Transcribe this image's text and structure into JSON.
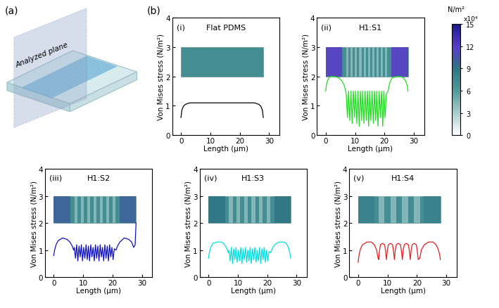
{
  "figure": {
    "panel_a": {
      "label": "(a)",
      "text": "Analyzed plane"
    },
    "panel_b_label": "(b)",
    "colorbar": {
      "range": [
        0,
        15
      ],
      "ticks": [
        0,
        3,
        6,
        9,
        12,
        15
      ],
      "unit": "N/m²",
      "multiplier": "x10⁴"
    }
  },
  "chart_data": [
    {
      "type": "line",
      "panel": "(i)",
      "title": "Flat PDMS",
      "x_label": "Length (μm)",
      "y_label": "Von Mises stress (N/m²)",
      "color": "#000000",
      "xlim": [
        -3,
        33.5
      ],
      "xticks": [
        0,
        10,
        20,
        30
      ],
      "ylim": [
        0,
        4
      ],
      "yticks": [
        0,
        1,
        2,
        3,
        4
      ],
      "inset": {
        "base": 7
      },
      "x": [
        0,
        0.3,
        0.8,
        1.5,
        3,
        6,
        10,
        14,
        18,
        22,
        25,
        26.5,
        27.2,
        27.7,
        28
      ],
      "values": [
        0.6,
        0.85,
        0.98,
        1.05,
        1.1,
        1.1,
        1.1,
        1.1,
        1.1,
        1.1,
        1.1,
        1.05,
        0.98,
        0.85,
        0.6
      ]
    },
    {
      "type": "line",
      "panel": "(ii)",
      "title": "H1:S1",
      "x_label": "Length (μm)",
      "y_label": "Von Mises stress (N/m²)",
      "color": "#22dd22",
      "xlim": [
        -3,
        33.5
      ],
      "xticks": [
        0,
        10,
        20,
        30
      ],
      "ylim": [
        0,
        4
      ],
      "yticks": [
        0,
        1,
        2,
        3,
        4
      ],
      "inset": {
        "base": 7,
        "ends": 12,
        "stripe": 4,
        "stripes": 10
      },
      "x": [
        0,
        0.3,
        0.8,
        1.5,
        3,
        4.5,
        5.5,
        6.3,
        6.8,
        7.0,
        7.4,
        7.8,
        8.2,
        8.6,
        9.0,
        9.4,
        9.8,
        10.2,
        10.6,
        11.0,
        11.4,
        11.8,
        12.2,
        12.6,
        13.0,
        13.4,
        13.8,
        14.2,
        14.6,
        15.0,
        15.4,
        15.8,
        16.2,
        16.6,
        17.0,
        17.4,
        17.8,
        18.2,
        18.6,
        19.0,
        19.4,
        19.8,
        20.2,
        20.6,
        21.2,
        21.7,
        22.5,
        24,
        25.5,
        26.5,
        27.2,
        27.7,
        28
      ],
      "values": [
        1.5,
        1.75,
        1.9,
        2.0,
        2.0,
        1.95,
        1.85,
        1.7,
        1.5,
        1.4,
        0.6,
        1.5,
        0.5,
        1.5,
        0.4,
        1.5,
        0.6,
        1.5,
        0.4,
        1.5,
        0.3,
        1.5,
        0.5,
        1.5,
        0.4,
        1.5,
        0.5,
        1.5,
        0.3,
        1.5,
        0.5,
        1.5,
        0.4,
        1.5,
        0.5,
        1.5,
        0.3,
        1.5,
        0.6,
        1.5,
        0.3,
        1.5,
        0.6,
        1.4,
        1.5,
        1.75,
        1.95,
        2.0,
        2.0,
        1.95,
        1.85,
        1.7,
        1.5
      ]
    },
    {
      "type": "line",
      "panel": "(iii)",
      "title": "H1:S2",
      "x_label": "Length (μm)",
      "y_label": "Von Mises stress (N/m²)",
      "color": "#1010c0",
      "xlim": [
        -3,
        33.5
      ],
      "xticks": [
        0,
        10,
        20,
        30
      ],
      "ylim": [
        0,
        4
      ],
      "yticks": [
        0,
        1,
        2,
        3,
        4
      ],
      "inset": {
        "base": 7,
        "ends": 10,
        "stripe": 4,
        "stripes": 7
      },
      "x": [
        0,
        0.3,
        0.8,
        1.5,
        3,
        4.5,
        5.5,
        6.3,
        6.8,
        7.0,
        7.4,
        7.8,
        8.2,
        8.6,
        9.0,
        9.4,
        9.8,
        10.2,
        10.6,
        11.0,
        11.4,
        11.8,
        12.2,
        12.6,
        13.0,
        13.4,
        13.8,
        14.2,
        14.6,
        15.0,
        15.4,
        15.8,
        16.2,
        16.6,
        17.0,
        17.4,
        17.8,
        18.2,
        18.6,
        19.0,
        19.4,
        19.8,
        20.2,
        20.6,
        21.2,
        21.7,
        22.5,
        24,
        25.5,
        26.5,
        27.2,
        27.7,
        28
      ],
      "values": [
        0.8,
        1.0,
        1.2,
        1.35,
        1.45,
        1.4,
        1.3,
        1.15,
        1.0,
        1.1,
        0.7,
        1.2,
        0.6,
        1.15,
        0.75,
        1.2,
        0.6,
        1.1,
        0.7,
        1.2,
        0.65,
        1.15,
        0.6,
        1.2,
        0.75,
        1.1,
        0.6,
        1.2,
        0.7,
        1.15,
        0.6,
        1.2,
        0.75,
        1.1,
        0.6,
        1.2,
        0.7,
        1.15,
        0.6,
        1.2,
        0.75,
        1.1,
        0.65,
        1.05,
        1.0,
        1.15,
        1.3,
        1.45,
        1.4,
        1.3,
        1.1,
        1.2,
        2.0
      ]
    },
    {
      "type": "line",
      "panel": "(iv)",
      "title": "H1:S3",
      "x_label": "Length (μm)",
      "y_label": "Von Mises stress (N/m²)",
      "color": "#00e0e0",
      "xlim": [
        -3,
        33.5
      ],
      "xticks": [
        0,
        10,
        20,
        30
      ],
      "ylim": [
        0,
        4
      ],
      "yticks": [
        0,
        1,
        2,
        3,
        4
      ],
      "inset": {
        "base": 7,
        "ends": 9,
        "stripe": 4,
        "stripes": 6
      },
      "x": [
        0,
        0.3,
        0.8,
        1.5,
        3,
        4.5,
        5.5,
        6.3,
        6.8,
        7.0,
        7.4,
        7.8,
        8.2,
        8.6,
        9.0,
        9.4,
        9.8,
        10.2,
        10.6,
        11.0,
        11.4,
        11.8,
        12.2,
        12.6,
        13.0,
        13.4,
        13.8,
        14.2,
        14.6,
        15.0,
        15.4,
        15.8,
        16.2,
        16.6,
        17.0,
        17.4,
        17.8,
        18.2,
        18.6,
        19.0,
        19.4,
        19.8,
        20.2,
        20.6,
        21.2,
        21.7,
        22.5,
        24,
        25.5,
        26.5,
        27.2,
        27.7,
        28
      ],
      "values": [
        0.7,
        0.9,
        1.1,
        1.25,
        1.3,
        1.3,
        1.2,
        1.05,
        0.9,
        1.0,
        0.6,
        1.1,
        0.5,
        1.05,
        0.65,
        1.1,
        0.55,
        1.0,
        0.6,
        1.1,
        0.5,
        1.05,
        0.65,
        1.1,
        0.55,
        1.0,
        0.6,
        1.1,
        0.5,
        1.05,
        0.65,
        1.1,
        0.55,
        1.0,
        0.6,
        1.1,
        0.5,
        1.05,
        0.65,
        1.1,
        0.55,
        1.0,
        0.6,
        0.95,
        0.9,
        1.05,
        1.2,
        1.3,
        1.3,
        1.25,
        1.1,
        0.9,
        0.7
      ]
    },
    {
      "type": "line",
      "panel": "(v)",
      "title": "H1:S4",
      "x_label": "Length (μm)",
      "y_label": "Von Mises stress (N/m²)",
      "color": "#e02020",
      "xlim": [
        -3,
        33.5
      ],
      "xticks": [
        0,
        10,
        20,
        30
      ],
      "ylim": [
        0,
        4
      ],
      "yticks": [
        0,
        1,
        2,
        3,
        4
      ],
      "inset": {
        "base": 7,
        "ends": 8,
        "stripe": 4,
        "stripes": 4
      },
      "x": [
        0,
        0.3,
        0.8,
        1.5,
        3,
        4.5,
        5.5,
        6.3,
        6.8,
        7.0,
        7.3,
        7.6,
        8.3,
        9.0,
        9.3,
        9.65,
        9.95,
        10.3,
        11.0,
        11.7,
        12.0,
        12.35,
        12.65,
        13.0,
        13.7,
        14.4,
        14.7,
        15.05,
        15.35,
        15.7,
        16.4,
        17.1,
        17.4,
        17.75,
        18.05,
        18.4,
        19.1,
        19.8,
        20.1,
        20.45,
        21.0,
        21.5,
        22.5,
        24,
        25.5,
        26.5,
        27.2,
        27.7,
        28
      ],
      "values": [
        0.55,
        0.8,
        1.05,
        1.2,
        1.3,
        1.3,
        1.2,
        1.0,
        0.7,
        0.65,
        1.0,
        1.2,
        1.25,
        1.2,
        1.0,
        0.65,
        1.0,
        1.2,
        1.25,
        1.2,
        1.0,
        0.65,
        1.0,
        1.2,
        1.25,
        1.2,
        1.0,
        0.65,
        1.0,
        1.2,
        1.25,
        1.2,
        1.0,
        0.65,
        1.0,
        1.2,
        1.25,
        1.2,
        1.0,
        0.65,
        0.7,
        1.0,
        1.2,
        1.3,
        1.3,
        1.2,
        1.05,
        0.85,
        0.65
      ]
    }
  ]
}
